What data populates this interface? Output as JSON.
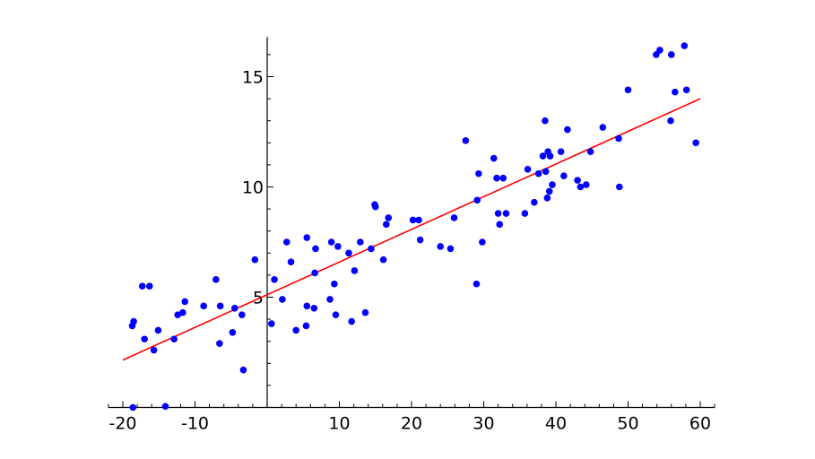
{
  "chart_data": {
    "type": "scatter",
    "title": "",
    "xlabel": "",
    "ylabel": "",
    "xlim": [
      -22,
      62
    ],
    "ylim": [
      0,
      16.8
    ],
    "xticks": [
      -20,
      -10,
      10,
      20,
      30,
      40,
      50,
      60
    ],
    "xtick_labels": [
      "-20",
      "-10",
      "10",
      "20",
      "30",
      "40",
      "50",
      "60"
    ],
    "yticks": [
      5,
      10,
      15
    ],
    "ytick_labels": [
      "5",
      "10",
      "15"
    ],
    "grid": false,
    "points_color": "#0000ff",
    "fit_color": "#ff0000",
    "points": [
      [
        -18.6,
        0
      ],
      [
        -14.1,
        0.05
      ],
      [
        -18.7,
        3.7
      ],
      [
        -18.5,
        3.9
      ],
      [
        -17.3,
        5.5
      ],
      [
        -16.3,
        5.5
      ],
      [
        -17.0,
        3.1
      ],
      [
        -15.7,
        2.6
      ],
      [
        -15.1,
        3.5
      ],
      [
        -12.9,
        3.1
      ],
      [
        -12.4,
        4.2
      ],
      [
        -11.7,
        4.3
      ],
      [
        -11.4,
        4.8
      ],
      [
        -8.8,
        4.6
      ],
      [
        -7.1,
        5.8
      ],
      [
        -6.6,
        2.9
      ],
      [
        -6.5,
        4.6
      ],
      [
        -4.8,
        3.4
      ],
      [
        -4.5,
        4.5
      ],
      [
        -3.5,
        4.2
      ],
      [
        -3.3,
        1.7
      ],
      [
        -1.7,
        6.7
      ],
      [
        0.6,
        3.8
      ],
      [
        1.0,
        5.8
      ],
      [
        2.1,
        4.9
      ],
      [
        2.7,
        7.5
      ],
      [
        3.3,
        6.6
      ],
      [
        4.0,
        3.5
      ],
      [
        5.5,
        7.7
      ],
      [
        5.5,
        4.6
      ],
      [
        5.4,
        3.7
      ],
      [
        6.6,
        6.1
      ],
      [
        6.7,
        7.2
      ],
      [
        6.5,
        4.5
      ],
      [
        8.7,
        4.9
      ],
      [
        8.9,
        7.5
      ],
      [
        9.3,
        5.6
      ],
      [
        9.8,
        7.3
      ],
      [
        9.5,
        4.2
      ],
      [
        11.3,
        7.0
      ],
      [
        11.7,
        3.9
      ],
      [
        12.1,
        6.2
      ],
      [
        12.9,
        7.5
      ],
      [
        13.6,
        4.3
      ],
      [
        14.4,
        7.2
      ],
      [
        14.9,
        9.2
      ],
      [
        15.0,
        9.1
      ],
      [
        16.1,
        6.7
      ],
      [
        16.5,
        8.3
      ],
      [
        16.8,
        8.6
      ],
      [
        20.2,
        8.5
      ],
      [
        21.0,
        8.5
      ],
      [
        21.2,
        7.6
      ],
      [
        24.0,
        7.3
      ],
      [
        25.4,
        7.2
      ],
      [
        25.9,
        8.6
      ],
      [
        27.5,
        12.1
      ],
      [
        29.0,
        5.6
      ],
      [
        29.1,
        9.4
      ],
      [
        29.3,
        10.6
      ],
      [
        29.8,
        7.5
      ],
      [
        31.4,
        11.3
      ],
      [
        31.8,
        10.4
      ],
      [
        32.0,
        8.8
      ],
      [
        32.2,
        8.3
      ],
      [
        32.7,
        10.4
      ],
      [
        33.1,
        8.8
      ],
      [
        35.7,
        8.8
      ],
      [
        36.1,
        10.8
      ],
      [
        37.0,
        9.3
      ],
      [
        37.6,
        10.6
      ],
      [
        38.2,
        11.4
      ],
      [
        38.5,
        13.0
      ],
      [
        38.6,
        10.7
      ],
      [
        38.8,
        9.5
      ],
      [
        38.9,
        11.6
      ],
      [
        39.1,
        9.8
      ],
      [
        39.2,
        11.4
      ],
      [
        39.5,
        10.1
      ],
      [
        40.7,
        11.6
      ],
      [
        41.1,
        10.5
      ],
      [
        41.6,
        12.6
      ],
      [
        43.0,
        10.3
      ],
      [
        43.4,
        10.0
      ],
      [
        44.2,
        10.1
      ],
      [
        44.8,
        11.6
      ],
      [
        46.5,
        12.7
      ],
      [
        48.7,
        12.2
      ],
      [
        48.8,
        10.0
      ],
      [
        50.0,
        14.4
      ],
      [
        53.9,
        16.0
      ],
      [
        54.4,
        16.2
      ],
      [
        55.9,
        13.0
      ],
      [
        56.0,
        16.0
      ],
      [
        56.5,
        14.3
      ],
      [
        57.8,
        16.4
      ],
      [
        58.1,
        14.4
      ],
      [
        59.4,
        12.0
      ]
    ],
    "fit_line": {
      "x": [
        -20,
        60
      ],
      "y": [
        2.15,
        14.0
      ]
    }
  }
}
